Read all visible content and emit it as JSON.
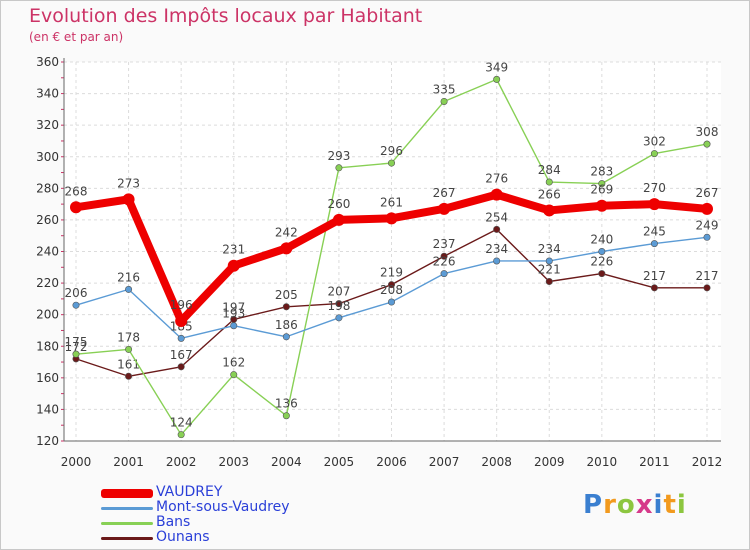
{
  "chart_data": {
    "type": "line",
    "title": "Evolution des Impôts locaux par Habitant",
    "subtitle": "(en € et par an)",
    "xlabel": "",
    "ylabel": "",
    "ylim": [
      120,
      360
    ],
    "yticks": [
      120,
      140,
      160,
      180,
      200,
      220,
      240,
      260,
      280,
      300,
      320,
      340,
      360
    ],
    "grid": true,
    "legend_position": "bottom-left",
    "categories": [
      "2000",
      "2001",
      "2002",
      "2003",
      "2004",
      "2005",
      "2006",
      "2007",
      "2008",
      "2009",
      "2010",
      "2011",
      "2012"
    ],
    "series": [
      {
        "name": "Ounans",
        "color": "#6b1a1a",
        "emphasis": false,
        "values": [
          172,
          161,
          167,
          197,
          205,
          207,
          219,
          237,
          254,
          221,
          226,
          217,
          217
        ],
        "labels": [
          "172",
          "161",
          "167",
          "197",
          "205",
          "207",
          "219",
          "237",
          "254",
          "221",
          "226",
          "217",
          "217"
        ]
      },
      {
        "name": "Bans",
        "color": "#88d055",
        "emphasis": false,
        "values": [
          175,
          178,
          124,
          162,
          136,
          293,
          296,
          335,
          349,
          284,
          283,
          302,
          308
        ],
        "labels": [
          "175",
          "178",
          "124",
          "162",
          "136",
          "293",
          "296",
          "335",
          "349",
          "284",
          "283",
          "302",
          "308"
        ]
      },
      {
        "name": "Mont-sous-Vaudrey",
        "color": "#5b9bd5",
        "emphasis": false,
        "values": [
          206,
          216,
          185,
          193,
          186,
          198,
          208,
          226,
          234,
          234,
          240,
          245,
          249
        ],
        "labels": [
          "206",
          "216",
          "185",
          "193",
          "186",
          "198",
          "208",
          "226",
          "234",
          "234",
          "240",
          "245",
          "249"
        ]
      },
      {
        "name": "VAUDREY",
        "color": "#ee0000",
        "emphasis": true,
        "values": [
          268,
          273,
          196,
          231,
          242,
          260,
          261,
          267,
          276,
          266,
          269,
          270,
          267
        ],
        "labels": [
          "268",
          "273",
          "196",
          "231",
          "242",
          "260",
          "261",
          "267",
          "276",
          "266",
          "269",
          "270",
          "267"
        ]
      }
    ]
  },
  "legend": {
    "items": [
      {
        "label": "VAUDREY",
        "color": "#ee0000"
      },
      {
        "label": "Mont-sous-Vaudrey",
        "color": "#5b9bd5"
      },
      {
        "label": "Bans",
        "color": "#88d055"
      },
      {
        "label": "Ounans",
        "color": "#6b1a1a"
      }
    ]
  },
  "brand": {
    "letters": [
      "P",
      "r",
      "o",
      "x",
      "i",
      "t",
      "i"
    ],
    "colors": [
      "#3a7fd0",
      "#f29a1e",
      "#8cc63f",
      "#d63a8a",
      "#3a7fd0",
      "#f29a1e",
      "#8cc63f"
    ]
  }
}
